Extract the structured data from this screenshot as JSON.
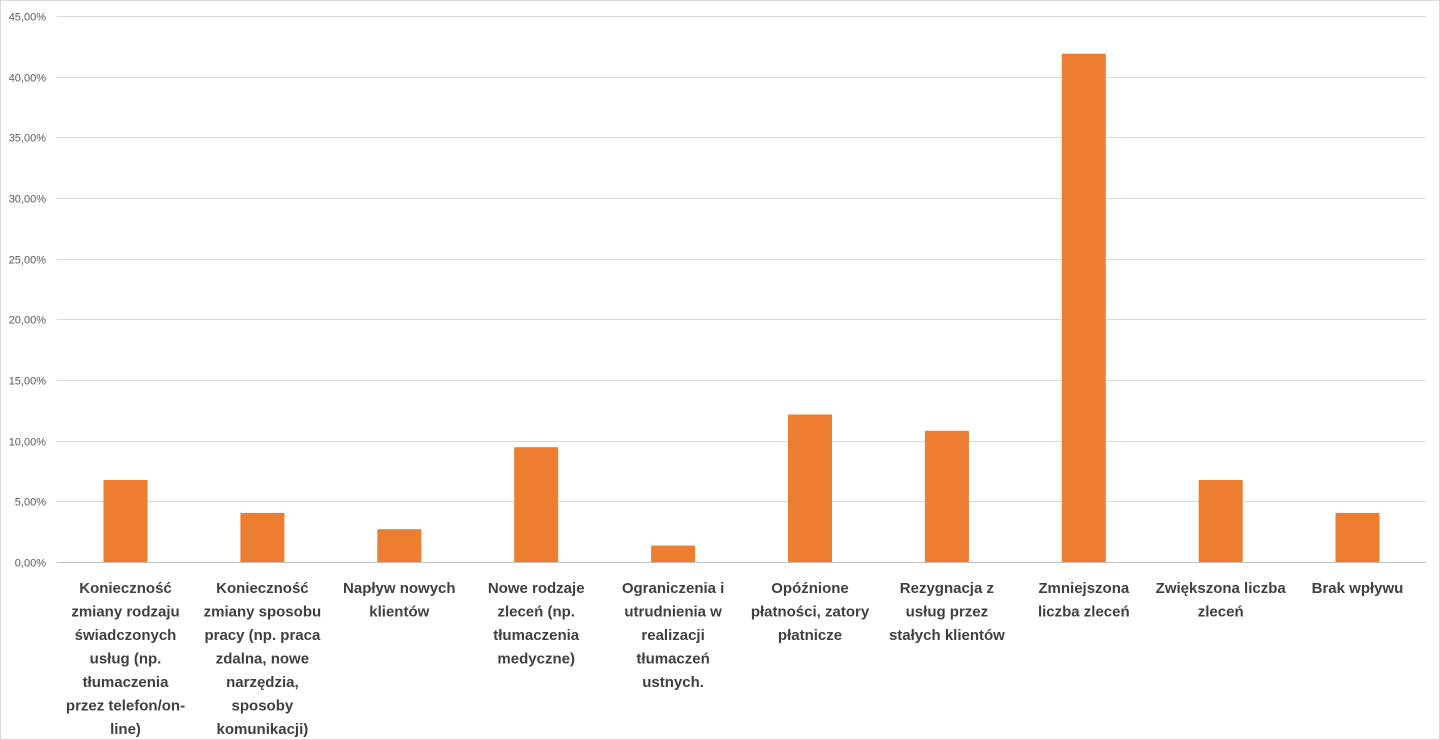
{
  "chart_data": {
    "type": "bar",
    "title": "",
    "xlabel": "",
    "ylabel": "",
    "ylim": [
      0,
      0.45
    ],
    "ytick_step": 0.05,
    "grid": true,
    "legend": "none",
    "bar_color": "#ED7D31",
    "categories": [
      "Konieczność zmiany rodzaju świadczonych usług (np. tłumaczenia przez telefon/on-line)",
      "Konieczność zmiany sposobu pracy (np. praca zdalna, nowe narzędzia, sposoby komunikacji)",
      "Napływ nowych klientów",
      "Nowe rodzaje zleceń (np. tłumaczenia medyczne)",
      "Ograniczenia i utrudnienia w realizacji tłumaczeń ustnych.",
      "Opóźnione płatności, zatory płatnicze",
      "Rezygnacja z usług przez stałych klientów",
      "Zmniejszona liczba zleceń",
      "Zwiększona liczba zleceń",
      "Brak wpływu"
    ],
    "category_label_lines": [
      [
        "Konieczność",
        "zmiany rodzaju",
        "świadczonych",
        "usług (np.",
        "tłumaczenia",
        "przez telefon/on-",
        "line)"
      ],
      [
        "Konieczność",
        "zmiany sposobu",
        "pracy (np. praca",
        "zdalna, nowe",
        "narzędzia,",
        "sposoby",
        "komunikacji)"
      ],
      [
        "Napływ nowych",
        "klientów"
      ],
      [
        "Nowe rodzaje",
        "zleceń (np.",
        "tłumaczenia",
        "medyczne)"
      ],
      [
        "Ograniczenia i",
        "utrudnienia w",
        "realizacji",
        "tłumaczeń",
        "ustnych."
      ],
      [
        "Opóźnione",
        "płatności, zatory",
        "płatnicze"
      ],
      [
        "Rezygnacja z",
        "usług przez",
        "stałych klientów"
      ],
      [
        "Zmniejszona",
        "liczba zleceń"
      ],
      [
        "Zwiększona liczba",
        "zleceń"
      ],
      [
        "Brak wpływu"
      ]
    ],
    "values": [
      0.0676,
      0.0405,
      0.027,
      0.0946,
      0.0135,
      0.1216,
      0.1081,
      0.4189,
      0.0676,
      0.0405
    ],
    "yticks": [
      "0,00%",
      "5,00%",
      "10,00%",
      "15,00%",
      "20,00%",
      "25,00%",
      "30,00%",
      "35,00%",
      "40,00%",
      "45,00%"
    ]
  }
}
